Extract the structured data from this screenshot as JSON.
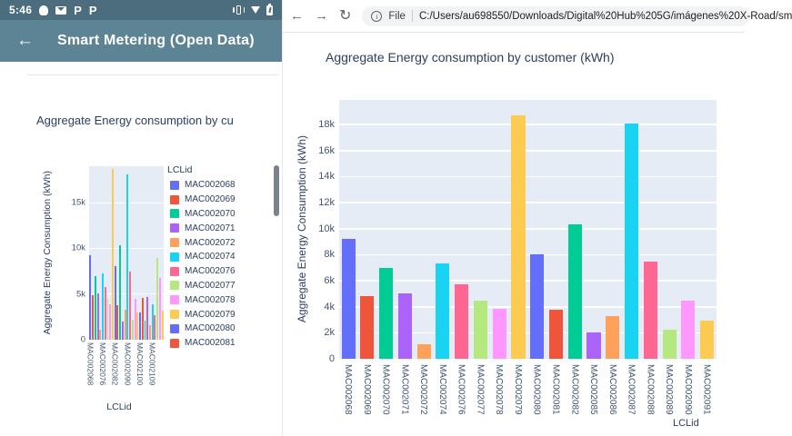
{
  "phone": {
    "status_bar": {
      "time": "5:46",
      "p_badge": "P"
    },
    "app_bar": {
      "back_icon": "←",
      "title": "Smart Metering (Open Data)"
    }
  },
  "browser": {
    "toolbar": {
      "back_icon": "←",
      "forward_icon": "→",
      "reload_icon": "↻",
      "info_icon": "i",
      "scheme_label": "File",
      "url": "C:/Users/au698550/Downloads/Digital%20Hub%205G/imágenes%20X-Road/sm"
    }
  },
  "palette": [
    "#636EFA",
    "#EF553B",
    "#00CC96",
    "#AB63FA",
    "#FFA15A",
    "#19D3F3",
    "#FF6692",
    "#B6E880",
    "#FF97FF",
    "#FECB52"
  ],
  "chart_data": [
    {
      "type": "bar",
      "title": "Aggregate Energy consumption by cu",
      "xlabel": "LCLid",
      "ylabel": "Aggregate Energy Consumption (kWh)",
      "ylim": [
        0,
        19000
      ],
      "grid": "on",
      "legend_position": "right",
      "ytick_labels": [
        "0",
        "5k",
        "10k",
        "15k"
      ],
      "ytick_values": [
        0,
        5000,
        10000,
        15000
      ],
      "xtick_labels": [
        "MAC002068",
        "MAC002076",
        "MAC002082",
        "MAC002090",
        "MAC002100",
        "MAC002109"
      ],
      "xtick_indices": [
        0,
        5,
        10,
        15,
        20,
        25
      ],
      "values": [
        9250,
        4850,
        6950,
        5050,
        1100,
        7300,
        5750,
        4500,
        3850,
        18700,
        8050,
        3750,
        10300,
        2000,
        3250,
        18100,
        7450,
        2200,
        4450,
        2950,
        3000,
        4600,
        2100,
        4700,
        1600,
        3900,
        2700,
        9000,
        6800,
        3200
      ],
      "legend": {
        "title": "LCLid",
        "items": [
          {
            "label": "MAC002068",
            "color": "#636EFA"
          },
          {
            "label": "MAC002069",
            "color": "#EF553B"
          },
          {
            "label": "MAC002070",
            "color": "#00CC96"
          },
          {
            "label": "MAC002071",
            "color": "#AB63FA"
          },
          {
            "label": "MAC002072",
            "color": "#FFA15A"
          },
          {
            "label": "MAC002074",
            "color": "#19D3F3"
          },
          {
            "label": "MAC002076",
            "color": "#FF6692"
          },
          {
            "label": "MAC002077",
            "color": "#B6E880"
          },
          {
            "label": "MAC002078",
            "color": "#FF97FF"
          },
          {
            "label": "MAC002079",
            "color": "#FECB52"
          },
          {
            "label": "MAC002080",
            "color": "#636EFA"
          },
          {
            "label": "MAC002081",
            "color": "#EF553B"
          }
        ]
      }
    },
    {
      "type": "bar",
      "title": "Aggregate Energy consumption by customer (kWh)",
      "xlabel": "LCLid",
      "ylabel": "Aggregate Energy Consumption (kWh)",
      "ylim": [
        0,
        19900
      ],
      "grid": "on",
      "ytick_labels": [
        "0",
        "2k",
        "4k",
        "6k",
        "8k",
        "10k",
        "12k",
        "14k",
        "16k",
        "18k"
      ],
      "ytick_values": [
        0,
        2000,
        4000,
        6000,
        8000,
        10000,
        12000,
        14000,
        16000,
        18000
      ],
      "categories": [
        "MAC002068",
        "MAC002069",
        "MAC002070",
        "MAC002071",
        "MAC002072",
        "MAC002074",
        "MAC002076",
        "MAC002077",
        "MAC002078",
        "MAC002079",
        "MAC002080",
        "MAC002081",
        "MAC002082",
        "MAC002085",
        "MAC002086",
        "MAC002087",
        "MAC002088",
        "MAC002089",
        "MAC002090",
        "MAC002091"
      ],
      "values": [
        9250,
        4850,
        6950,
        5050,
        1100,
        7300,
        5750,
        4500,
        3850,
        18700,
        8050,
        3750,
        10300,
        2000,
        3250,
        18100,
        7450,
        2200,
        4450,
        2950
      ]
    }
  ]
}
